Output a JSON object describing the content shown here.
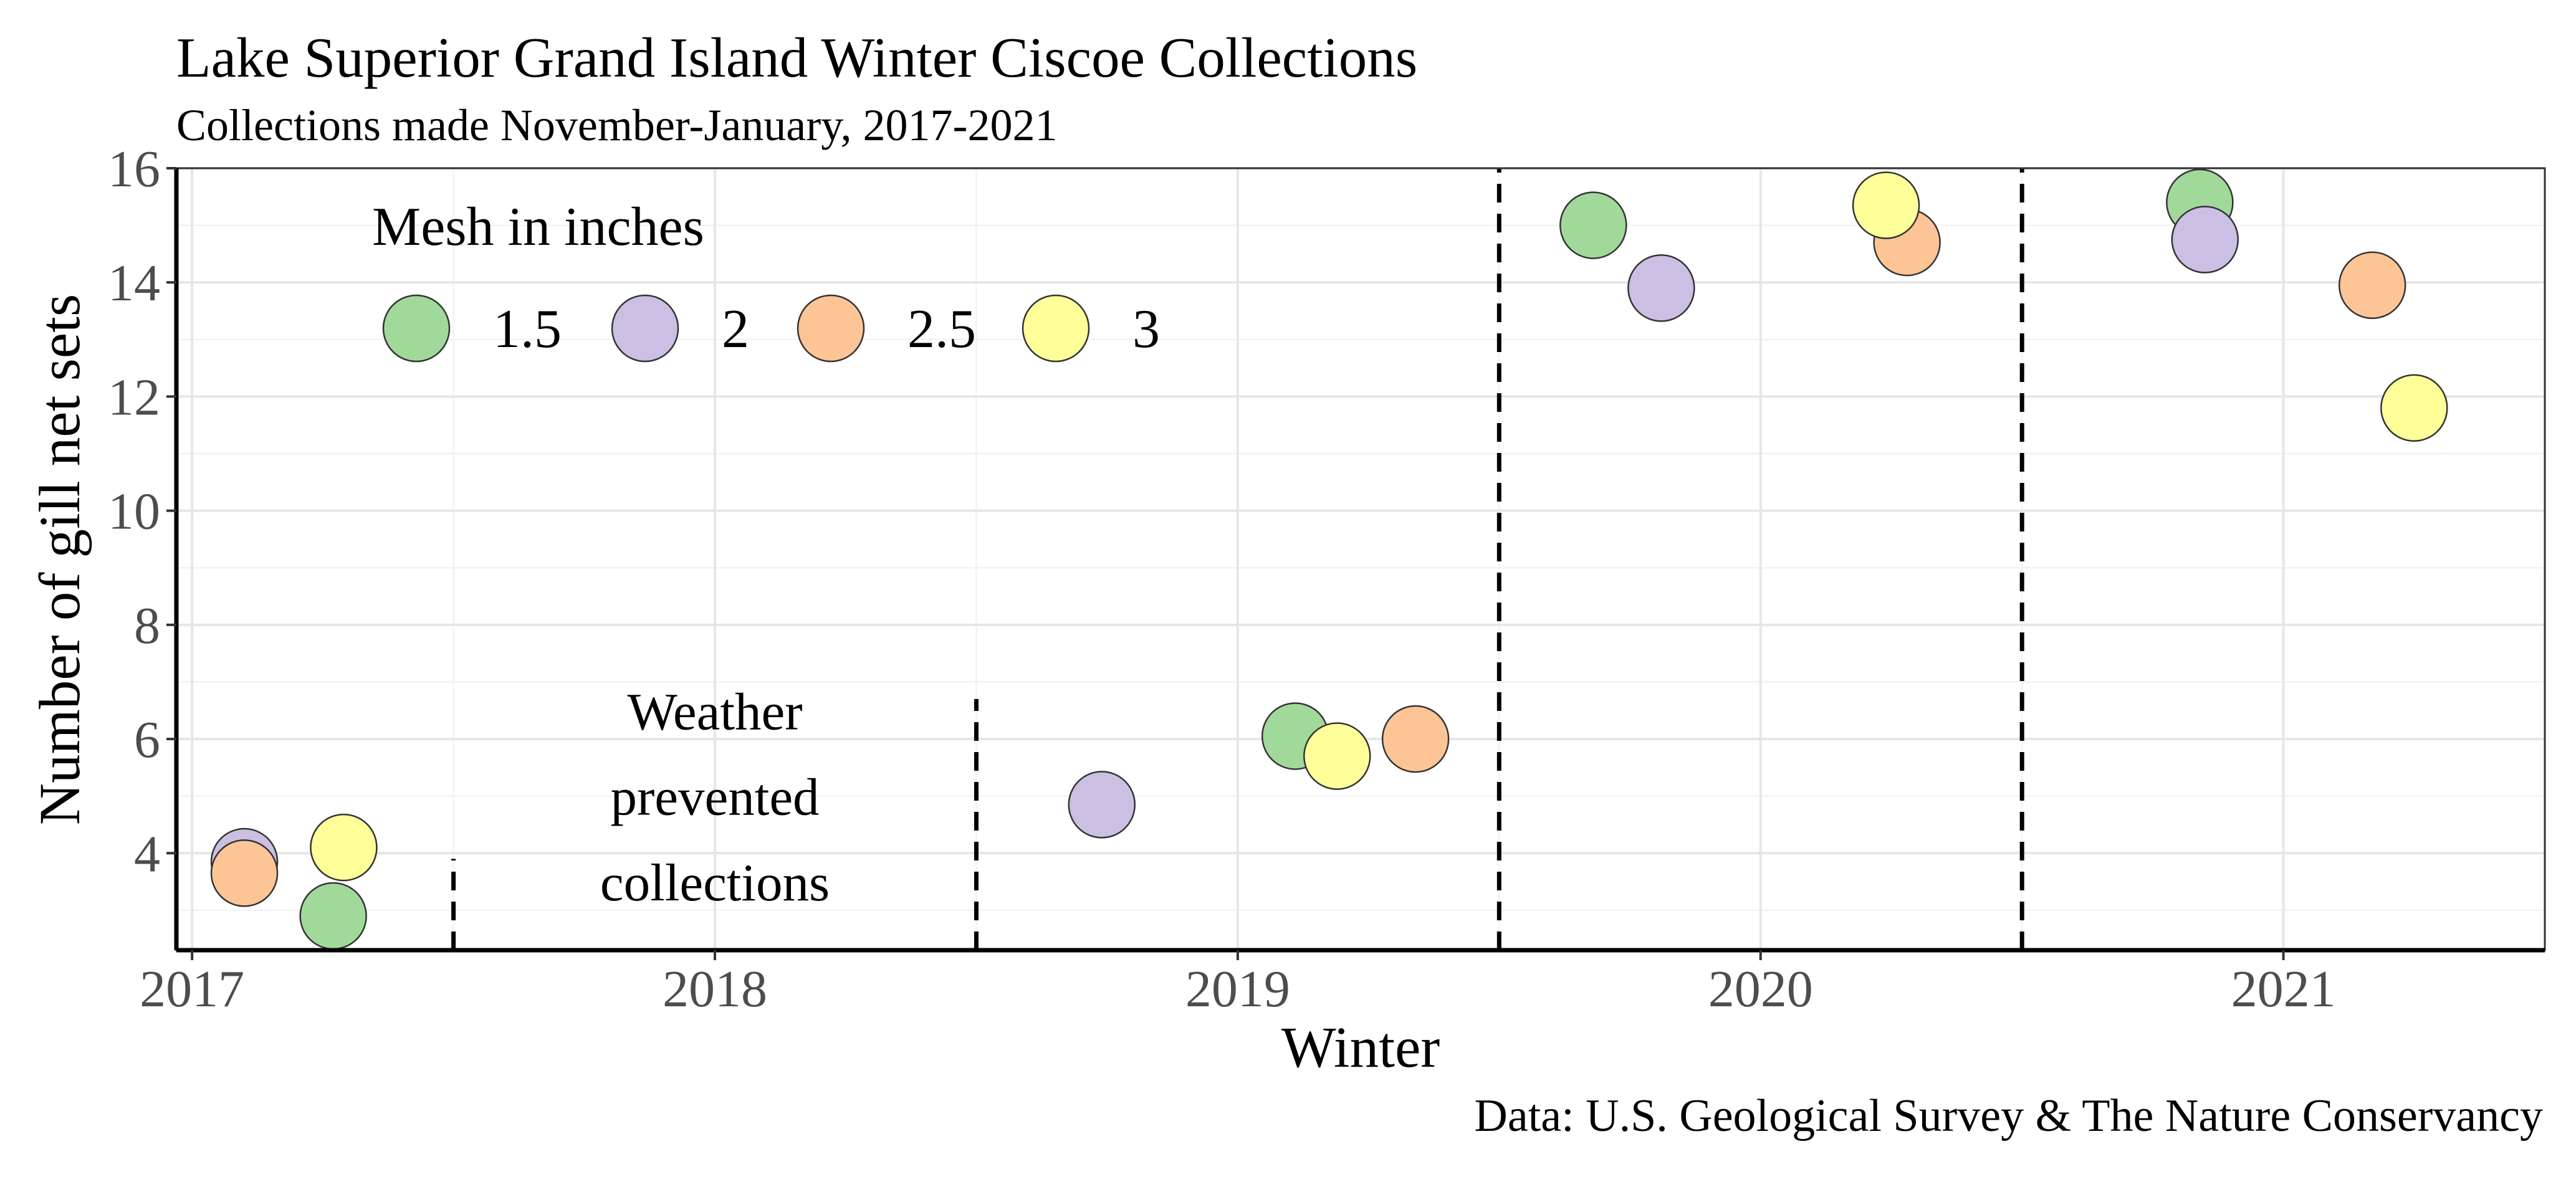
{
  "chart_data": {
    "type": "scatter",
    "title": "Lake Superior Grand Island Winter Ciscoe Collections",
    "subtitle": "Collections made November-January, 2017-2021",
    "xlabel": "Winter",
    "ylabel": "Number of gill net sets",
    "caption": "Data: U.S. Geological Survey & The Nature Conservancy",
    "xlim": [
      2016.97,
      2021.5
    ],
    "ylim": [
      2.3,
      16
    ],
    "x_ticks": [
      2017,
      2018,
      2019,
      2020,
      2021
    ],
    "y_ticks": [
      4,
      6,
      8,
      10,
      12,
      14,
      16
    ],
    "grid": true,
    "legend": {
      "title": "Mesh in inches",
      "placement": "top-left",
      "entries": [
        {
          "label": "1.5",
          "color": "#a1d99b"
        },
        {
          "label": "2",
          "color": "#cbbfe3"
        },
        {
          "label": "2.5",
          "color": "#fdc596"
        },
        {
          "label": "3",
          "color": "#ffff99"
        }
      ]
    },
    "series": [
      {
        "name": "1.5",
        "color": "#a1d99b",
        "points": [
          [
            2017.27,
            2.9
          ],
          [
            2019.11,
            6.05
          ],
          [
            2019.68,
            15.0
          ],
          [
            2020.84,
            15.4
          ]
        ]
      },
      {
        "name": "2",
        "color": "#cbbfe3",
        "points": [
          [
            2017.1,
            3.85
          ],
          [
            2018.74,
            4.85
          ],
          [
            2019.81,
            13.9
          ],
          [
            2020.85,
            14.75
          ]
        ]
      },
      {
        "name": "2.5",
        "color": "#fdc596",
        "points": [
          [
            2017.1,
            3.65
          ],
          [
            2019.34,
            6.0
          ],
          [
            2020.28,
            14.7
          ],
          [
            2021.17,
            13.95
          ]
        ]
      },
      {
        "name": "3",
        "color": "#ffff99",
        "points": [
          [
            2017.29,
            4.1
          ],
          [
            2019.19,
            5.7
          ],
          [
            2020.24,
            15.35
          ],
          [
            2021.25,
            11.8
          ]
        ]
      }
    ],
    "vlines": [
      {
        "x": 2017.5,
        "y_top": 3.9
      },
      {
        "x": 2018.5,
        "y_top": 6.7
      },
      {
        "x": 2019.5
      },
      {
        "x": 2020.5
      }
    ],
    "annotations": [
      {
        "text": [
          "Weather",
          "prevented",
          "collections"
        ],
        "x": 2018.0,
        "y": [
          6.5,
          5.0,
          3.5
        ]
      }
    ]
  }
}
